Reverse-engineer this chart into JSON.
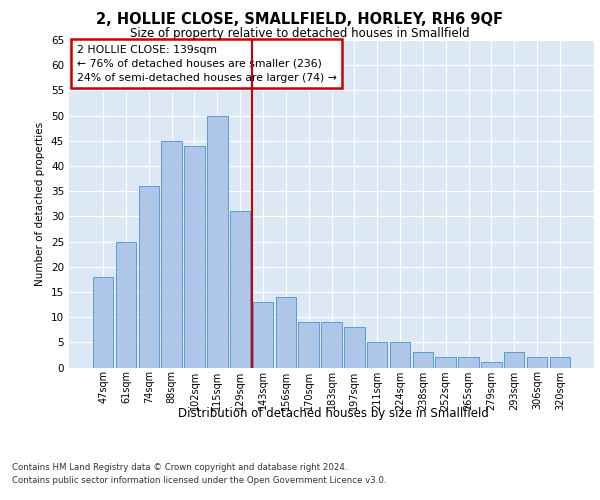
{
  "title": "2, HOLLIE CLOSE, SMALLFIELD, HORLEY, RH6 9QF",
  "subtitle": "Size of property relative to detached houses in Smallfield",
  "xlabel": "Distribution of detached houses by size in Smallfield",
  "ylabel": "Number of detached properties",
  "categories": [
    "47sqm",
    "61sqm",
    "74sqm",
    "88sqm",
    "102sqm",
    "115sqm",
    "129sqm",
    "143sqm",
    "156sqm",
    "170sqm",
    "183sqm",
    "197sqm",
    "211sqm",
    "224sqm",
    "238sqm",
    "252sqm",
    "265sqm",
    "279sqm",
    "293sqm",
    "306sqm",
    "320sqm"
  ],
  "values": [
    18,
    25,
    36,
    45,
    44,
    50,
    31,
    13,
    14,
    9,
    9,
    8,
    5,
    5,
    3,
    2,
    2,
    1,
    3,
    2,
    2
  ],
  "bar_color": "#aec6e8",
  "bar_edge_color": "#5b9bd5",
  "annotation_text": "2 HOLLIE CLOSE: 139sqm\n← 76% of detached houses are smaller (236)\n24% of semi-detached houses are larger (74) →",
  "annotation_box_color": "#ffffff",
  "annotation_box_edge": "#cc0000",
  "vline_color": "#cc0000",
  "ylim": [
    0,
    65
  ],
  "yticks": [
    0,
    5,
    10,
    15,
    20,
    25,
    30,
    35,
    40,
    45,
    50,
    55,
    60,
    65
  ],
  "footnote1": "Contains HM Land Registry data © Crown copyright and database right 2024.",
  "footnote2": "Contains public sector information licensed under the Open Government Licence v3.0.",
  "background_color": "#dde8f5",
  "fig_background": "#ffffff",
  "grid_color": "#ffffff"
}
